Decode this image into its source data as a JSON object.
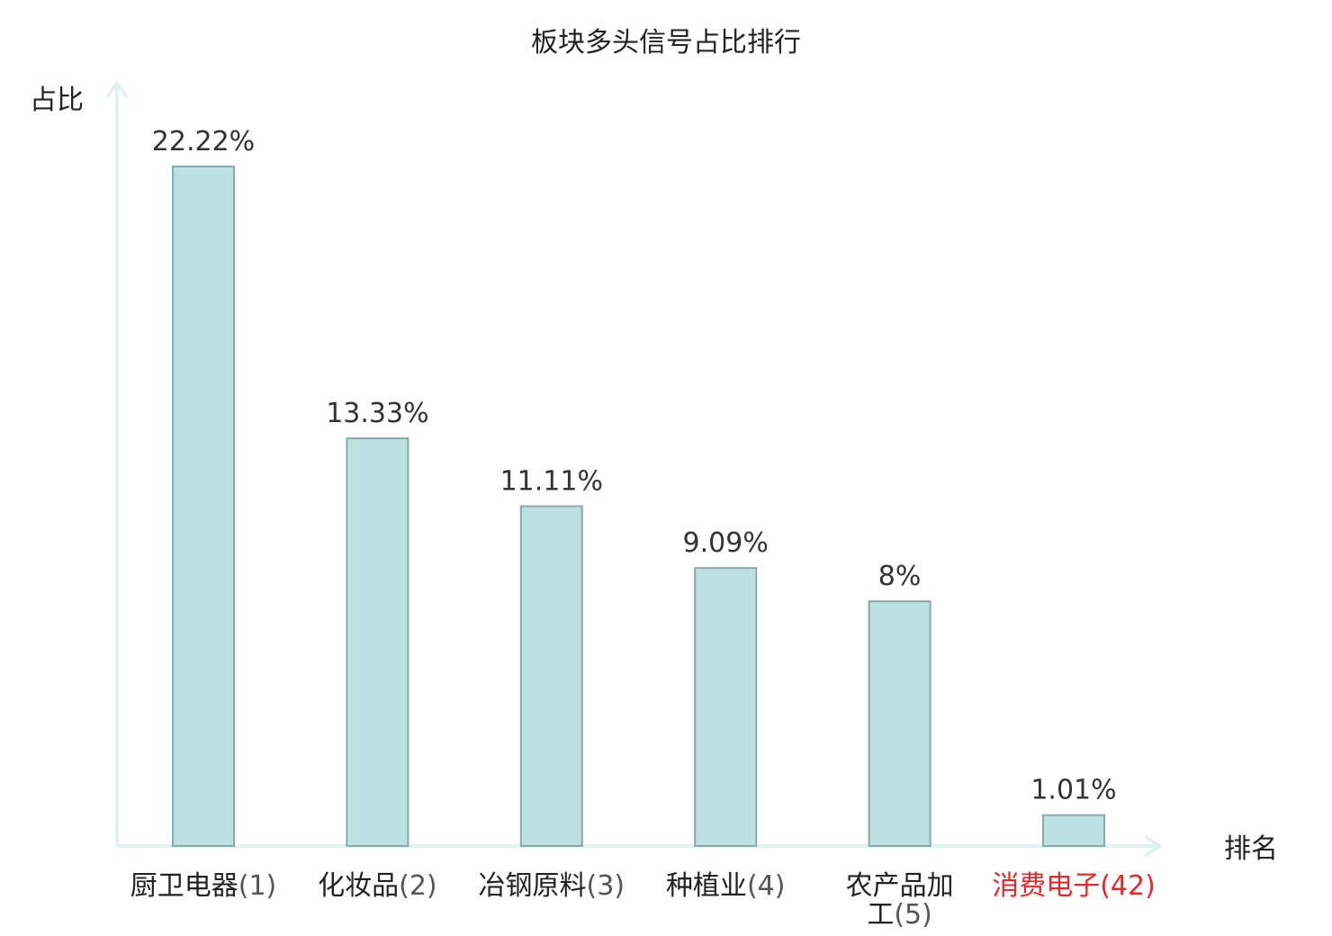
{
  "chart_data": {
    "type": "bar",
    "title": "板块多头信号占比排行",
    "ylabel": "占比",
    "xlabel": "排名",
    "categories": [
      "厨卫电器",
      "化妆品",
      "冶钢原料",
      "种植业",
      "农产品加工",
      "消费电子"
    ],
    "ranks": [
      "(1)",
      "(2)",
      "(3)",
      "(4)",
      "(5)",
      "(42)"
    ],
    "values": [
      22.22,
      13.33,
      11.11,
      9.09,
      8,
      1.01
    ],
    "value_labels": [
      "22.22%",
      "13.33%",
      "11.11%",
      "9.09%",
      "8%",
      "1.01%"
    ],
    "highlight_index": 5,
    "ylim": [
      0,
      25
    ],
    "grid": false,
    "colors": {
      "bar_fill": "#bde0e3",
      "bar_stroke": "#8aa9ab",
      "axis": "#dff2f0",
      "highlight_text": "#e8262a",
      "text": "#222222"
    }
  }
}
